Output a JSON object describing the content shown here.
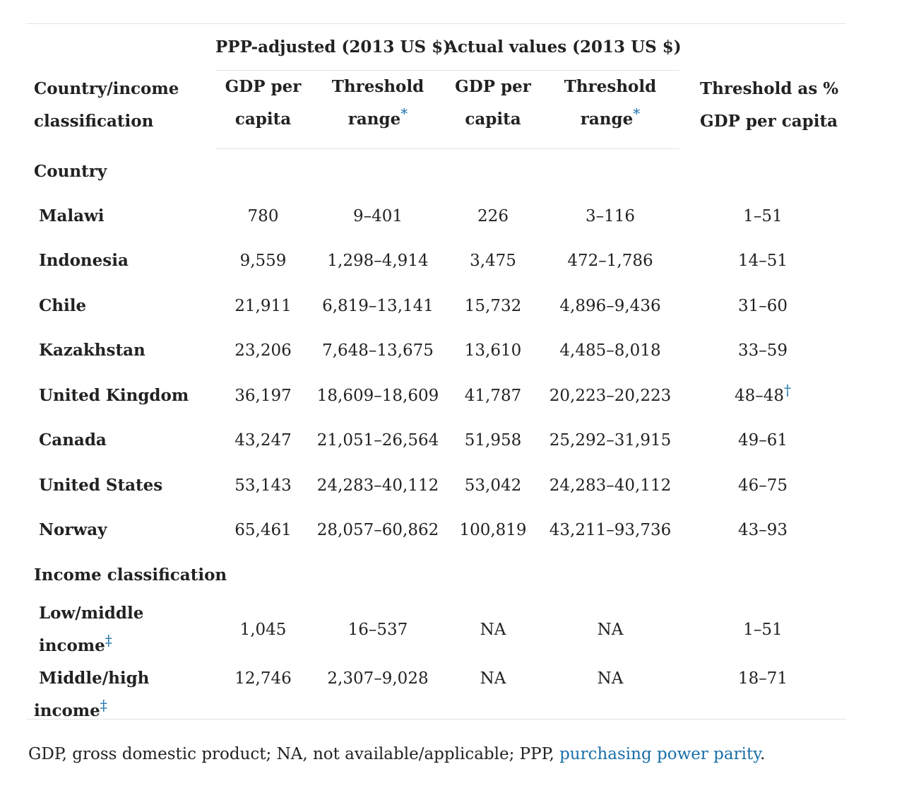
{
  "table": {
    "group_headers": {
      "ppp": "PPP-adjusted (2013 US $)",
      "actual": "Actual values (2013 US $)"
    },
    "column_headers": {
      "country_line1": "Country/income",
      "country_line2": "classification",
      "ppp_gdp_line1": "GDP per",
      "ppp_gdp_line2": "capita",
      "ppp_thr_line1": "Threshold",
      "ppp_thr_line2": "range",
      "act_gdp_line1": "GDP per",
      "act_gdp_line2": "capita",
      "act_thr_line1": "Threshold",
      "act_thr_line2": "range",
      "pct_line1": "Threshold as %",
      "pct_line2": "GDP per capita",
      "asterisk": "*"
    },
    "sections": {
      "country": "Country",
      "income": "Income classification"
    },
    "rows": [
      {
        "name": "Malawi",
        "ppp_gdp": "780",
        "ppp_thr": "9–401",
        "act_gdp": "226",
        "act_thr": "3–116",
        "pct": "1–51"
      },
      {
        "name": "Indonesia",
        "ppp_gdp": "9,559",
        "ppp_thr": "1,298–4,914",
        "act_gdp": "3,475",
        "act_thr": "472–1,786",
        "pct": "14–51"
      },
      {
        "name": "Chile",
        "ppp_gdp": "21,911",
        "ppp_thr": "6,819–13,141",
        "act_gdp": "15,732",
        "act_thr": "4,896–9,436",
        "pct": "31–60"
      },
      {
        "name": "Kazakhstan",
        "ppp_gdp": "23,206",
        "ppp_thr": "7,648–13,675",
        "act_gdp": "13,610",
        "act_thr": "4,485–8,018",
        "pct": "33–59"
      },
      {
        "name": "United Kingdom",
        "ppp_gdp": "36,197",
        "ppp_thr": "18,609–18,609",
        "act_gdp": "41,787",
        "act_thr": "20,223–20,223",
        "pct": "48–48",
        "pct_note": "†"
      },
      {
        "name": "Canada",
        "ppp_gdp": "43,247",
        "ppp_thr": "21,051–26,564",
        "act_gdp": "51,958",
        "act_thr": "25,292–31,915",
        "pct": "49–61"
      },
      {
        "name": "United States",
        "ppp_gdp": "53,143",
        "ppp_thr": "24,283–40,112",
        "act_gdp": "53,042",
        "act_thr": "24,283–40,112",
        "pct": "46–75"
      },
      {
        "name": "Norway",
        "ppp_gdp": "65,461",
        "ppp_thr": "28,057–60,862",
        "act_gdp": "100,819",
        "act_thr": "43,211–93,736",
        "pct": "43–93"
      }
    ],
    "income_rows": [
      {
        "name": "Low/middle income",
        "note": "‡",
        "ppp_gdp": "1,045",
        "ppp_thr": "16–537",
        "act_gdp": "NA",
        "act_thr": "NA",
        "pct": "1–51"
      },
      {
        "name_line1": "Middle/high",
        "name_line2": "income",
        "note": "‡",
        "ppp_gdp": "12,746",
        "ppp_thr": "2,307–9,028",
        "act_gdp": "NA",
        "act_thr": "NA",
        "pct": "18–71"
      }
    ]
  },
  "footnote": {
    "text": "GDP, gross domestic product; NA, not available/applicable; PPP, ",
    "link": "purchasing power parity",
    "end": "."
  },
  "colors": {
    "link": "#1a6fa8",
    "rule": "#e4e4e4",
    "text": "#222222"
  }
}
